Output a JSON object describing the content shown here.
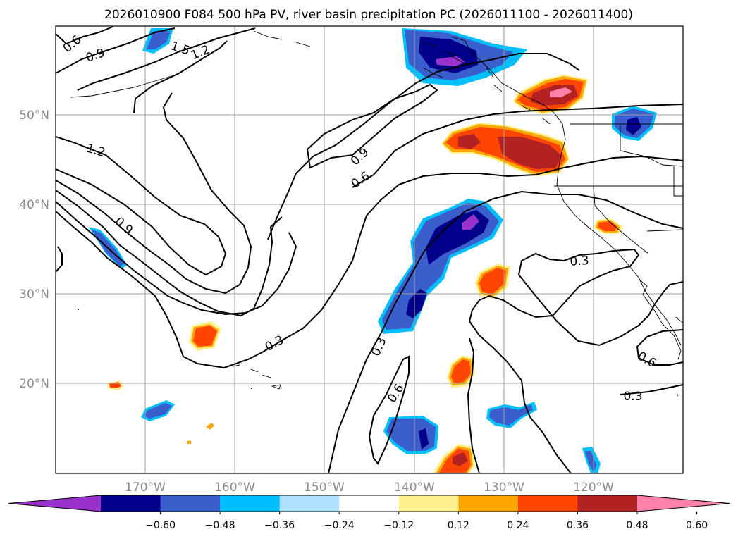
{
  "title": "2026010900 F084 500 hPa PV, river basin precipitation PC (2026011100 - 2026011400)",
  "map": {
    "lon_ticks": [
      "170°W",
      "160°W",
      "150°W",
      "140°W",
      "130°W",
      "120°W"
    ],
    "lat_ticks": [
      "50°N",
      "40°N",
      "30°N",
      "20°N"
    ],
    "contour_labels": [
      "0.6",
      "0.9",
      "1.5",
      "1.2",
      "1.2",
      "0.9",
      "0.9",
      "0.6",
      "0.3",
      "0.3",
      "0.6",
      "0.3",
      "0.6",
      "0.3"
    ]
  },
  "colorbar": {
    "tick_labels": [
      "−0.60",
      "−0.48",
      "−0.36",
      "−0.24",
      "−0.12",
      "0.12",
      "0.24",
      "0.36",
      "0.48",
      "0.60"
    ],
    "colors": [
      "#9932cc",
      "#00008b",
      "#3a5fcd",
      "#00bfff",
      "#b0e2ff",
      "#ffffff",
      "#fff08c",
      "#ffa500",
      "#ff4500",
      "#b22222",
      "#ff82ab"
    ]
  }
}
